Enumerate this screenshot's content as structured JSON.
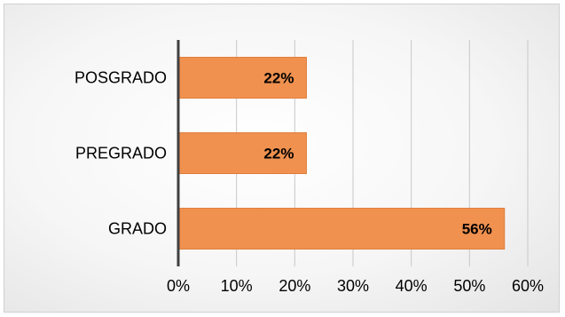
{
  "chart_data": {
    "type": "bar",
    "orientation": "horizontal",
    "categories": [
      "POSGRADO",
      "PREGRADO",
      "GRADO"
    ],
    "values": [
      22,
      22,
      56
    ],
    "data_labels": [
      "22%",
      "22%",
      "56%"
    ],
    "xlim": [
      0,
      60
    ],
    "x_ticks": [
      "0%",
      "10%",
      "20%",
      "30%",
      "40%",
      "50%",
      "60%"
    ],
    "grid": "vertical",
    "legend": "none",
    "colors": {
      "bar": "#F0914F",
      "bar_edge": "#E07E3C",
      "axis": "#404040",
      "grid": "#c8c8c8",
      "text": "#000000"
    }
  }
}
